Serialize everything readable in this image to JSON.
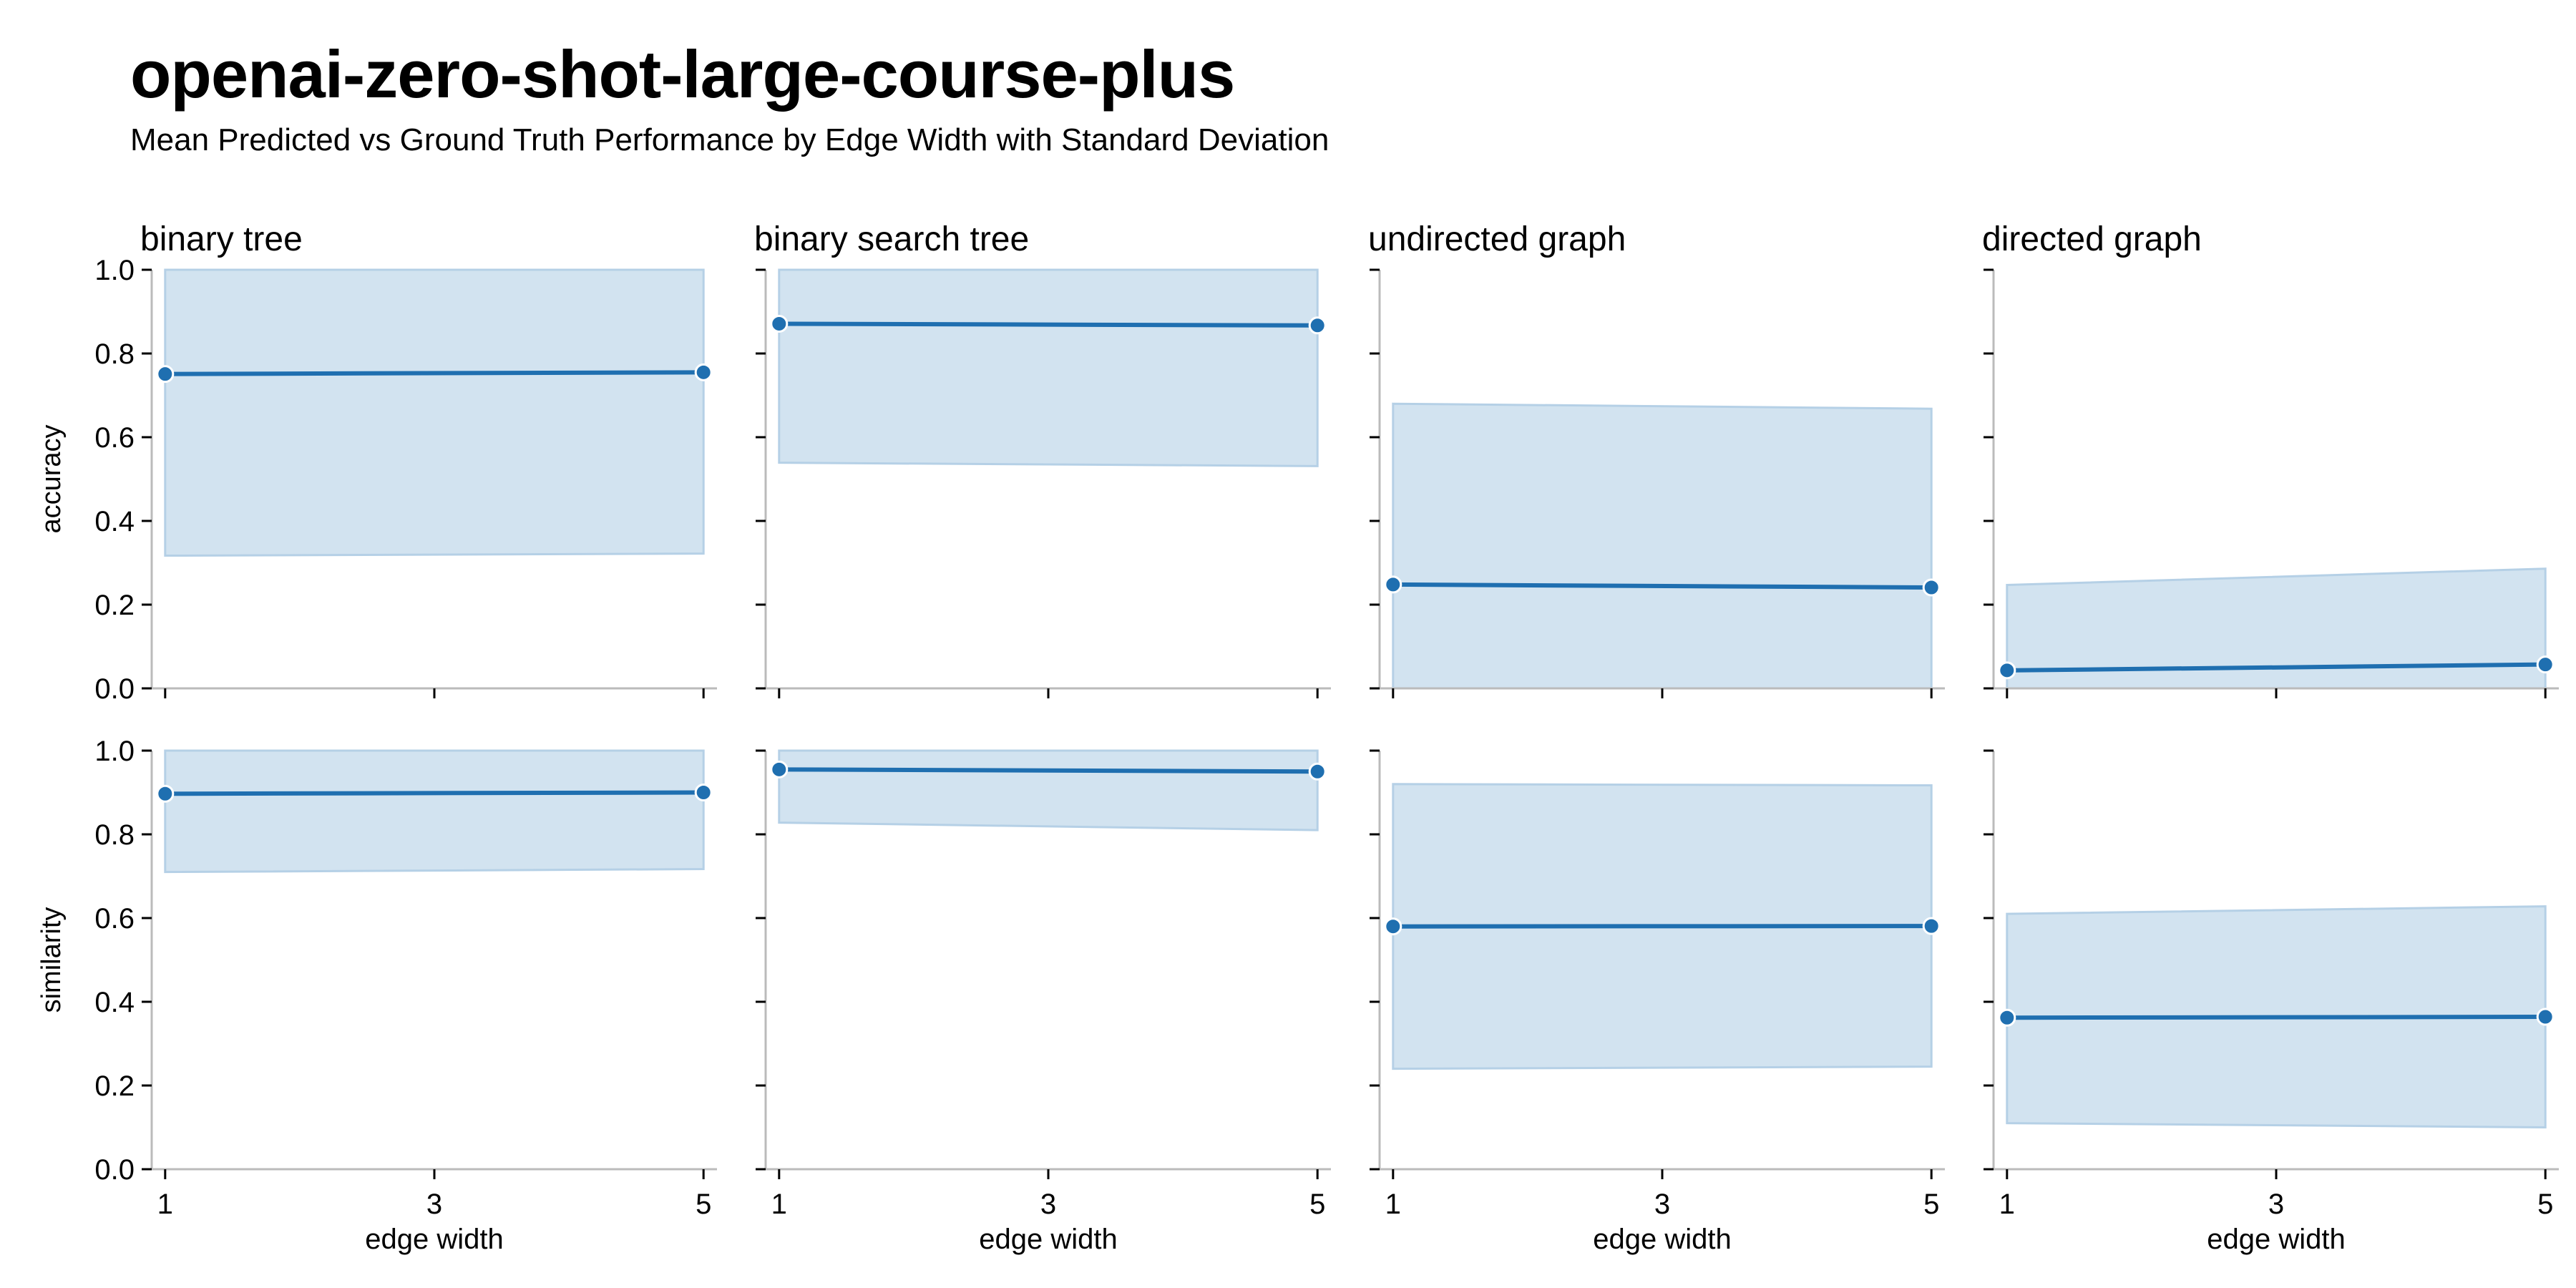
{
  "chart_data": {
    "type": "line",
    "title": "openai-zero-shot-large-course-plus",
    "subtitle": "Mean Predicted vs Ground Truth Performance by Edge Width with Standard Deviation",
    "columns": [
      "binary tree",
      "binary search tree",
      "undirected graph",
      "directed graph"
    ],
    "rows": [
      "accuracy",
      "similarity"
    ],
    "xlabel": "edge width",
    "x": [
      1,
      5
    ],
    "xticks": [
      1,
      3,
      5
    ],
    "xlim": [
      0.9,
      5.1
    ],
    "ylim": [
      0,
      1
    ],
    "yticks": [
      0.0,
      0.2,
      0.4,
      0.6,
      0.8,
      1.0
    ],
    "grid": false,
    "colors": {
      "line": "#1f6fb0",
      "band": "#d2e3f0",
      "band_edge": "#b5d0e6",
      "axis": "#bbbbbb"
    },
    "panels": [
      {
        "row": "accuracy",
        "column": "binary tree",
        "mean": [
          0.751,
          0.755
        ],
        "lower": [
          0.317,
          0.322
        ],
        "upper": [
          1.0,
          1.0
        ]
      },
      {
        "row": "accuracy",
        "column": "binary search tree",
        "mean": [
          0.871,
          0.867
        ],
        "lower": [
          0.539,
          0.531
        ],
        "upper": [
          1.0,
          1.0
        ]
      },
      {
        "row": "accuracy",
        "column": "undirected graph",
        "mean": [
          0.248,
          0.241
        ],
        "lower": [
          0.0,
          0.0
        ],
        "upper": [
          0.68,
          0.668
        ]
      },
      {
        "row": "accuracy",
        "column": "directed graph",
        "mean": [
          0.043,
          0.057
        ],
        "lower": [
          0.0,
          0.0
        ],
        "upper": [
          0.247,
          0.286
        ]
      },
      {
        "row": "similarity",
        "column": "binary tree",
        "mean": [
          0.897,
          0.9
        ],
        "lower": [
          0.71,
          0.717
        ],
        "upper": [
          1.0,
          1.0
        ]
      },
      {
        "row": "similarity",
        "column": "binary search tree",
        "mean": [
          0.955,
          0.95
        ],
        "lower": [
          0.828,
          0.81
        ],
        "upper": [
          1.0,
          1.0
        ]
      },
      {
        "row": "similarity",
        "column": "undirected graph",
        "mean": [
          0.58,
          0.581
        ],
        "lower": [
          0.24,
          0.245
        ],
        "upper": [
          0.92,
          0.917
        ]
      },
      {
        "row": "similarity",
        "column": "directed graph",
        "mean": [
          0.362,
          0.364
        ],
        "lower": [
          0.11,
          0.1
        ],
        "upper": [
          0.61,
          0.628
        ]
      }
    ]
  }
}
